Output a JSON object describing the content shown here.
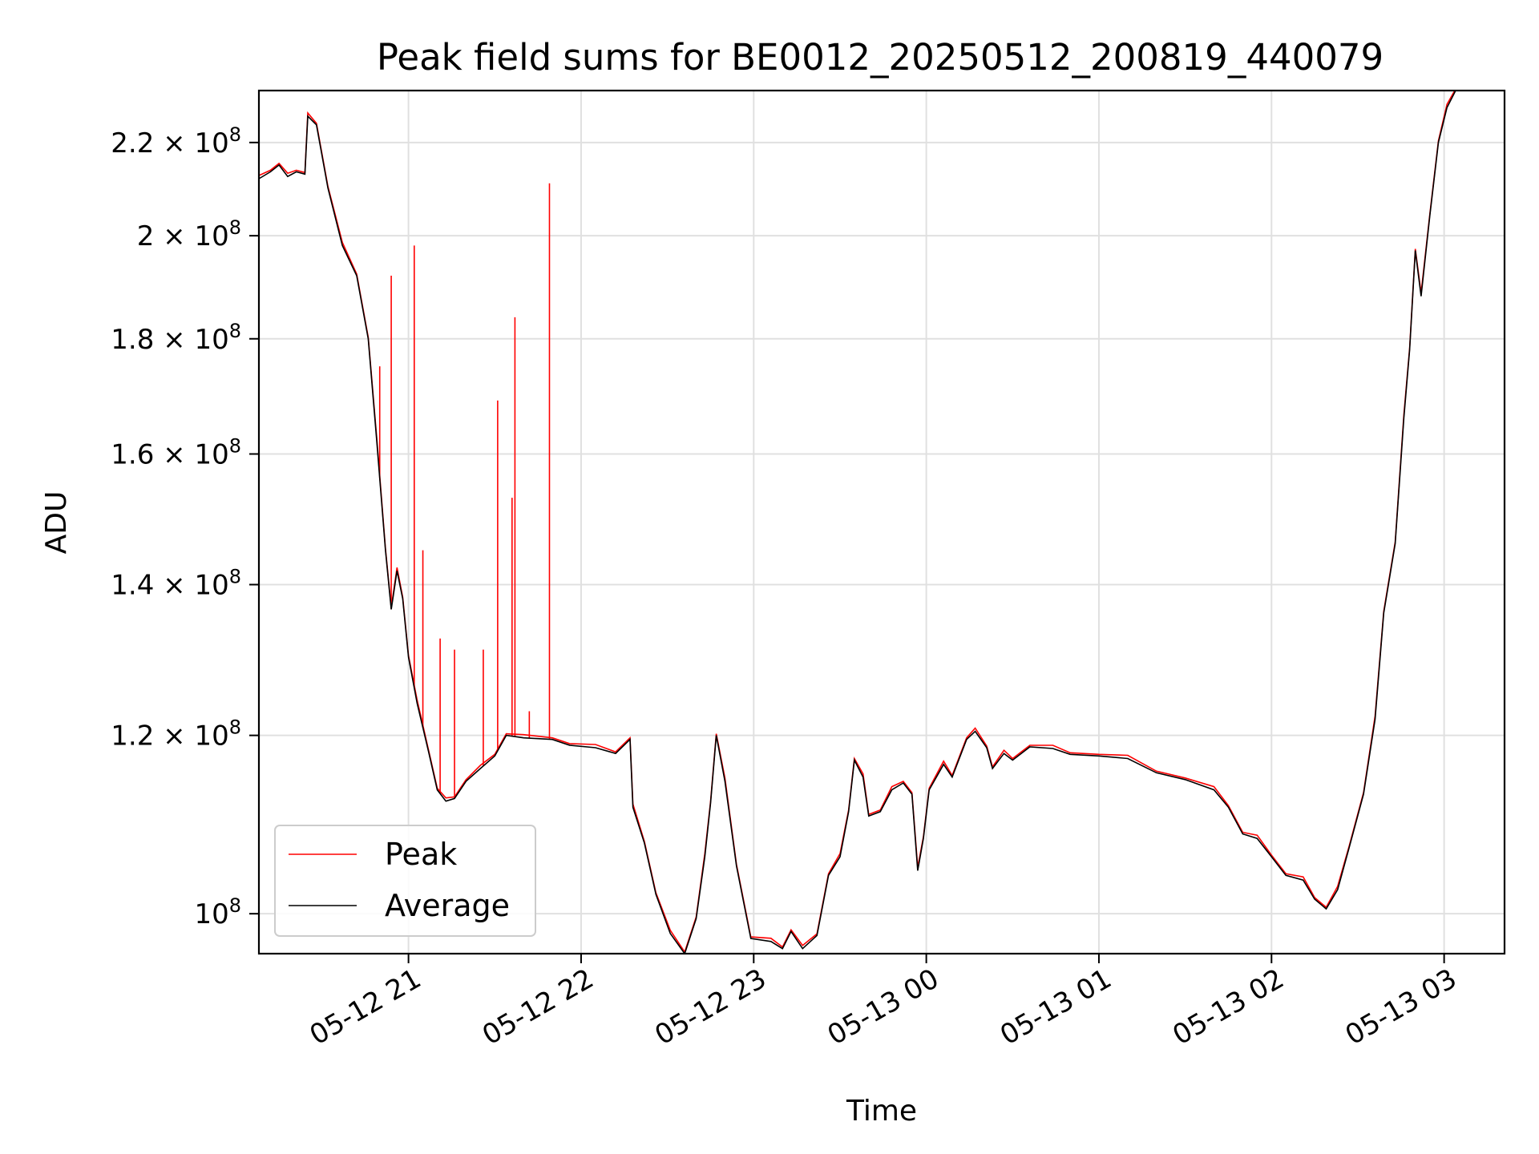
{
  "chart_data": {
    "type": "line",
    "title": "Peak field sums for BE0012_20250512_200819_440079",
    "xlabel": "Time",
    "ylabel": "ADU",
    "y_scale": "log",
    "grid": true,
    "legend_placement": "lower-left",
    "xlim": [
      "2025-05-12 20:08",
      "2025-05-13 03:21"
    ],
    "ylim": [
      96000000,
      232000000
    ],
    "x_ticks": [
      {
        "value": "2025-05-12 21:00",
        "label": "05-12 21"
      },
      {
        "value": "2025-05-12 22:00",
        "label": "05-12 22"
      },
      {
        "value": "2025-05-12 23:00",
        "label": "05-12 23"
      },
      {
        "value": "2025-05-13 00:00",
        "label": "05-13 00"
      },
      {
        "value": "2025-05-13 01:00",
        "label": "05-13 01"
      },
      {
        "value": "2025-05-13 02:00",
        "label": "05-13 02"
      },
      {
        "value": "2025-05-13 03:00",
        "label": "05-13 03"
      }
    ],
    "y_ticks": [
      {
        "value": 100000000,
        "mant": "",
        "exp": "8"
      },
      {
        "value": 120000000,
        "mant": "1.2",
        "exp": "8"
      },
      {
        "value": 140000000,
        "mant": "1.4",
        "exp": "8"
      },
      {
        "value": 160000000,
        "mant": "1.6",
        "exp": "8"
      },
      {
        "value": 180000000,
        "mant": "1.8",
        "exp": "8"
      },
      {
        "value": 200000000,
        "mant": "2",
        "exp": "8"
      },
      {
        "value": 220000000,
        "mant": "2.2",
        "exp": "8"
      }
    ],
    "series": [
      {
        "name": "Average",
        "color": "#000000",
        "points": [
          [
            "2025-05-12 20:08",
            212000000
          ],
          [
            "2025-05-12 20:12",
            213500000
          ],
          [
            "2025-05-12 20:15",
            215000000
          ],
          [
            "2025-05-12 20:18",
            212500000
          ],
          [
            "2025-05-12 20:21",
            213500000
          ],
          [
            "2025-05-12 20:24",
            213000000
          ],
          [
            "2025-05-12 20:25",
            226000000
          ],
          [
            "2025-05-12 20:28",
            224000000
          ],
          [
            "2025-05-12 20:32",
            210000000
          ],
          [
            "2025-05-12 20:37",
            198000000
          ],
          [
            "2025-05-12 20:42",
            192000000
          ],
          [
            "2025-05-12 20:46",
            180000000
          ],
          [
            "2025-05-12 20:49",
            162000000
          ],
          [
            "2025-05-12 20:52",
            145000000
          ],
          [
            "2025-05-12 20:54",
            136500000
          ],
          [
            "2025-05-12 20:56",
            142000000
          ],
          [
            "2025-05-12 20:58",
            138000000
          ],
          [
            "2025-05-12 21:00",
            130000000
          ],
          [
            "2025-05-12 21:03",
            124000000
          ],
          [
            "2025-05-12 21:07",
            118000000
          ],
          [
            "2025-05-12 21:10",
            113500000
          ],
          [
            "2025-05-12 21:13",
            112200000
          ],
          [
            "2025-05-12 21:16",
            112500000
          ],
          [
            "2025-05-12 21:20",
            114500000
          ],
          [
            "2025-05-12 21:25",
            116000000
          ],
          [
            "2025-05-12 21:30",
            117500000
          ],
          [
            "2025-05-12 21:34",
            120000000
          ],
          [
            "2025-05-12 21:40",
            119700000
          ],
          [
            "2025-05-12 21:50",
            119500000
          ],
          [
            "2025-05-12 21:56",
            118800000
          ],
          [
            "2025-05-12 22:05",
            118500000
          ],
          [
            "2025-05-12 22:12",
            117800000
          ],
          [
            "2025-05-12 22:17",
            119500000
          ],
          [
            "2025-05-12 22:18",
            111500000
          ],
          [
            "2025-05-12 22:22",
            107500000
          ],
          [
            "2025-05-12 22:26",
            102000000
          ],
          [
            "2025-05-12 22:31",
            98000000
          ],
          [
            "2025-05-12 22:36",
            96000000
          ],
          [
            "2025-05-12 22:40",
            99500000
          ],
          [
            "2025-05-12 22:43",
            106000000
          ],
          [
            "2025-05-12 22:45",
            112000000
          ],
          [
            "2025-05-12 22:47",
            120000000
          ],
          [
            "2025-05-12 22:50",
            114500000
          ],
          [
            "2025-05-12 22:54",
            105000000
          ],
          [
            "2025-05-12 22:59",
            97500000
          ],
          [
            "2025-05-12 23:06",
            97200000
          ],
          [
            "2025-05-12 23:10",
            96500000
          ],
          [
            "2025-05-12 23:13",
            98200000
          ],
          [
            "2025-05-12 23:17",
            96500000
          ],
          [
            "2025-05-12 23:22",
            97800000
          ],
          [
            "2025-05-12 23:26",
            104000000
          ],
          [
            "2025-05-12 23:30",
            106000000
          ],
          [
            "2025-05-12 23:33",
            111000000
          ],
          [
            "2025-05-12 23:35",
            117000000
          ],
          [
            "2025-05-12 23:38",
            115000000
          ],
          [
            "2025-05-12 23:40",
            110500000
          ],
          [
            "2025-05-12 23:44",
            111000000
          ],
          [
            "2025-05-12 23:48",
            113500000
          ],
          [
            "2025-05-12 23:52",
            114300000
          ],
          [
            "2025-05-12 23:55",
            113000000
          ],
          [
            "2025-05-12 23:57",
            104500000
          ],
          [
            "2025-05-12 23:59",
            108000000
          ],
          [
            "2025-05-13 00:01",
            113500000
          ],
          [
            "2025-05-13 00:06",
            116500000
          ],
          [
            "2025-05-13 00:09",
            115000000
          ],
          [
            "2025-05-13 00:14",
            119500000
          ],
          [
            "2025-05-13 00:17",
            120500000
          ],
          [
            "2025-05-13 00:21",
            118500000
          ],
          [
            "2025-05-13 00:23",
            116000000
          ],
          [
            "2025-05-13 00:27",
            117800000
          ],
          [
            "2025-05-13 00:30",
            117000000
          ],
          [
            "2025-05-13 00:36",
            118600000
          ],
          [
            "2025-05-13 00:44",
            118400000
          ],
          [
            "2025-05-13 00:50",
            117700000
          ],
          [
            "2025-05-13 01:00",
            117500000
          ],
          [
            "2025-05-13 01:10",
            117200000
          ],
          [
            "2025-05-13 01:20",
            115500000
          ],
          [
            "2025-05-13 01:30",
            114700000
          ],
          [
            "2025-05-13 01:40",
            113500000
          ],
          [
            "2025-05-13 01:45",
            111500000
          ],
          [
            "2025-05-13 01:50",
            108500000
          ],
          [
            "2025-05-13 01:55",
            108000000
          ],
          [
            "2025-05-13 02:00",
            106000000
          ],
          [
            "2025-05-13 02:05",
            104000000
          ],
          [
            "2025-05-13 02:11",
            103500000
          ],
          [
            "2025-05-13 02:15",
            101500000
          ],
          [
            "2025-05-13 02:19",
            100500000
          ],
          [
            "2025-05-13 02:23",
            102500000
          ],
          [
            "2025-05-13 02:27",
            107000000
          ],
          [
            "2025-05-13 02:32",
            113000000
          ],
          [
            "2025-05-13 02:36",
            122000000
          ],
          [
            "2025-05-13 02:39",
            136000000
          ],
          [
            "2025-05-13 02:43",
            146000000
          ],
          [
            "2025-05-13 02:46",
            166000000
          ],
          [
            "2025-05-13 02:48",
            178000000
          ],
          [
            "2025-05-13 02:50",
            197000000
          ],
          [
            "2025-05-13 02:52",
            188000000
          ],
          [
            "2025-05-13 02:55",
            204000000
          ],
          [
            "2025-05-13 02:58",
            220000000
          ],
          [
            "2025-05-13 03:01",
            228000000
          ],
          [
            "2025-05-13 03:04",
            232000000
          ]
        ]
      },
      {
        "name": "Peak",
        "color": "#ff0000",
        "spikes": [
          [
            "2025-05-12 20:50",
            175000000
          ],
          [
            "2025-05-12 20:54",
            192000000
          ],
          [
            "2025-05-12 21:02",
            198000000
          ],
          [
            "2025-05-12 21:05",
            145000000
          ],
          [
            "2025-05-12 21:11",
            132500000
          ],
          [
            "2025-05-12 21:16",
            131000000
          ],
          [
            "2025-05-12 21:26",
            131000000
          ],
          [
            "2025-05-12 21:31",
            169000000
          ],
          [
            "2025-05-12 21:36",
            153000000
          ],
          [
            "2025-05-12 21:37",
            184000000
          ],
          [
            "2025-05-12 21:42",
            123000000
          ],
          [
            "2025-05-12 21:49",
            211000000
          ]
        ]
      }
    ]
  }
}
